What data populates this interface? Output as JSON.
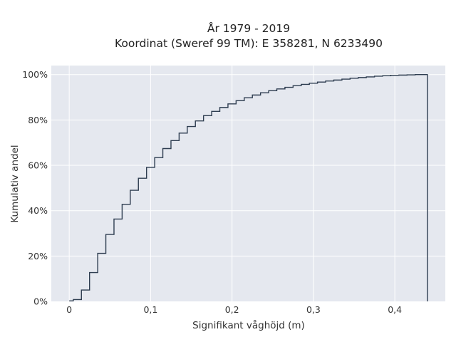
{
  "chart_data": {
    "type": "line",
    "line_shape": "step",
    "title": "År 1979 - 2019",
    "subtitle": "Koordinat (Sweref 99 TM): E 358281, N 6233490",
    "xlabel": "Signifikant våghöjd (m)",
    "ylabel": "Kumulativ andel",
    "xlim": [
      -0.022,
      0.462
    ],
    "ylim": [
      0,
      1.04
    ],
    "x_ticks": [
      0,
      0.1,
      0.2,
      0.3,
      0.4
    ],
    "x_tick_labels": [
      "0",
      "0,1",
      "0,2",
      "0,3",
      "0,4"
    ],
    "y_ticks": [
      0,
      0.2,
      0.4,
      0.6,
      0.8,
      1.0
    ],
    "y_tick_labels": [
      "0%",
      "20%",
      "40%",
      "60%",
      "80%",
      "100%"
    ],
    "grid": true,
    "colors": {
      "line": "#2e3d50",
      "plot_background": "#e5e8ef",
      "grid": "#ffffff"
    },
    "series": [
      {
        "x": [
          0,
          0.01,
          0.02,
          0.03,
          0.04,
          0.05,
          0.06,
          0.07,
          0.08,
          0.09,
          0.1,
          0.11,
          0.12,
          0.13,
          0.14,
          0.15,
          0.16,
          0.17,
          0.18,
          0.19,
          0.2,
          0.21,
          0.22,
          0.23,
          0.24,
          0.25,
          0.26,
          0.27,
          0.28,
          0.29,
          0.3,
          0.31,
          0.32,
          0.33,
          0.34,
          0.35,
          0.36,
          0.37,
          0.38,
          0.39,
          0.4,
          0.41,
          0.42,
          0.43,
          0.44
        ],
        "y": [
          0.002,
          0.008,
          0.05,
          0.127,
          0.212,
          0.295,
          0.363,
          0.428,
          0.49,
          0.543,
          0.591,
          0.634,
          0.674,
          0.709,
          0.742,
          0.771,
          0.796,
          0.819,
          0.838,
          0.855,
          0.871,
          0.885,
          0.898,
          0.91,
          0.92,
          0.929,
          0.937,
          0.944,
          0.951,
          0.957,
          0.962,
          0.967,
          0.972,
          0.976,
          0.98,
          0.984,
          0.987,
          0.99,
          0.993,
          0.995,
          0.997,
          0.998,
          0.999,
          1.0,
          1.0
        ],
        "end_drop_to": 0
      }
    ]
  }
}
